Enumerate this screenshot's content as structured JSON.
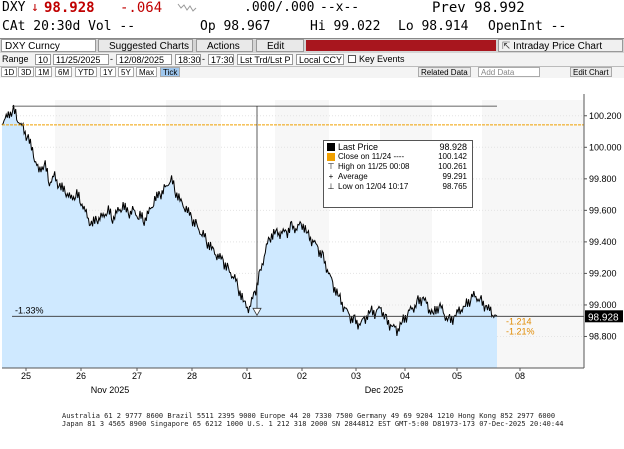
{
  "header": {
    "ticker": "DXY",
    "price_arrow": "↓",
    "price": "98.928",
    "change": "-.064",
    "bid_ask": ".000/.000",
    "cross": "--x--",
    "prev": "Prev 98.992",
    "at": "CAt 20:30d Vol --",
    "open": "Op 98.967",
    "high": "Hi 99.022",
    "low": "Lo 98.914",
    "openint": "OpenInt --"
  },
  "toolbar": {
    "security": "DXY Curncy",
    "suggested": "Suggested Charts",
    "actions": "Actions",
    "edit": "Edit",
    "title": "Intraday Price Chart"
  },
  "range": {
    "label": "Range",
    "interval": "10",
    "start": "11/25/2025",
    "end": "12/08/2025",
    "time_from": "18:30",
    "time_to": "17:30",
    "field": "Lst Trd/Lst P",
    "currency": "Local CCY",
    "key_events": "Key Events"
  },
  "periods": [
    "1D",
    "3D",
    "1M",
    "6M",
    "YTD",
    "1Y",
    "5Y",
    "Max",
    "Tick"
  ],
  "related": "Related Data",
  "add_data": "Add Data",
  "edit_chart": "Edit Chart",
  "chart_data": {
    "type": "area",
    "title": "",
    "xlabel": "",
    "ylabel": "",
    "ylim": [
      98.6,
      100.3
    ],
    "yticks": [
      "100.200",
      "100.000",
      "99.800",
      "99.600",
      "99.400",
      "99.200",
      "99.000",
      "98.800"
    ],
    "ytick_values": [
      100.2,
      100.0,
      99.8,
      99.6,
      99.4,
      99.2,
      99.0,
      98.8
    ],
    "day_labels": [
      "25",
      "26",
      "27",
      "28",
      "01",
      "02",
      "03",
      "04",
      "05",
      "08"
    ],
    "month_labels": [
      "Nov 2025",
      "Dec 2025"
    ],
    "series": [
      {
        "values": [
          100.16,
          100.2,
          100.24,
          100.18,
          100.12,
          100.05,
          99.95,
          99.85,
          99.9,
          99.78,
          99.82,
          99.74,
          99.72,
          99.68,
          99.7,
          99.66,
          99.58,
          99.5,
          99.54,
          99.56,
          99.6,
          99.55,
          99.6,
          99.62,
          99.58,
          99.6,
          99.56,
          99.54,
          99.6,
          99.66,
          99.7,
          99.74,
          99.8,
          99.72,
          99.66,
          99.6,
          99.55,
          99.5,
          99.45,
          99.4,
          99.36,
          99.3,
          99.28,
          99.22,
          99.18,
          99.1,
          99.02,
          98.97,
          99.08,
          99.2,
          99.34,
          99.44,
          99.47,
          99.45,
          99.46,
          99.5,
          99.48,
          99.52,
          99.46,
          99.4,
          99.36,
          99.3,
          99.2,
          99.12,
          99.06,
          98.98,
          98.93,
          98.9,
          98.87,
          98.92,
          98.97,
          98.95,
          98.98,
          98.9,
          98.86,
          98.84,
          98.9,
          98.94,
          98.98,
          99.02,
          99.04,
          98.98,
          98.95,
          99.0,
          98.94,
          98.9,
          98.92,
          98.97,
          99.0,
          99.04,
          99.06,
          99.02,
          98.98,
          98.95,
          98.93
        ]
      }
    ],
    "last_price": 98.928,
    "close_ref": 100.142,
    "high": 100.261,
    "low": 98.765,
    "pct_labels": [
      "-1.33%",
      "-1.214",
      "-1.21%"
    ],
    "legend": [
      {
        "label": "Last Price",
        "value": "98.928"
      },
      {
        "label": "Close on 11/24 ---- ",
        "value": "100.142"
      },
      {
        "label": "High on 11/25 00:08",
        "value": "100.261"
      },
      {
        "label": "Average",
        "value": "99.291"
      },
      {
        "label": "Low on 12/04 10:17",
        "value": "98.765"
      }
    ],
    "colors": {
      "fill": "#cfe9ff",
      "line": "#000000",
      "close_line": "#f0a000",
      "last_box": "#000000"
    }
  },
  "footer": {
    "line1": "Australia 61 2 9777 8600  Brazil 5511 2395 9000  Europe 44 20 7330 7500  Germany 49 69 9204 1210  Hong Kong 852 2977 6000",
    "line2": "Japan 81 3 4565 8900          Singapore 65 6212 1000      U.S. 1 212 318 2000          SN 2844812 EST  GMT-5:00 D81973-173 07-Dec-2025 20:40:44"
  }
}
